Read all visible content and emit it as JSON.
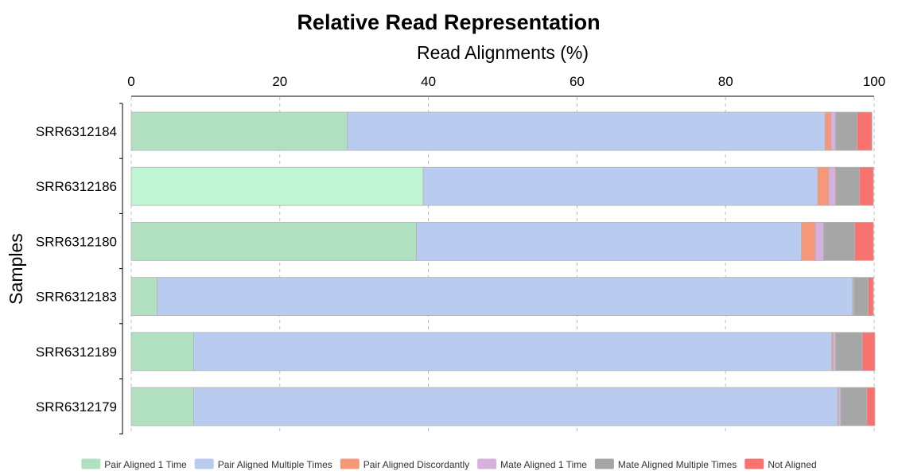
{
  "chart_data": {
    "type": "bar",
    "orientation": "horizontal",
    "stacked": true,
    "title": "Relative Read Representation",
    "xlabel": "Read Alignments (%)",
    "ylabel": "Samples",
    "xlim": [
      0,
      100
    ],
    "x_ticks": [
      "0",
      "20",
      "40",
      "60",
      "80",
      "100"
    ],
    "x_tick_values": [
      0,
      20,
      40,
      60,
      80,
      100
    ],
    "x_axis_position": "top",
    "grid": "vertical dashed",
    "legend_position": "bottom",
    "categories": [
      "SRR6312184",
      "SRR6312186",
      "SRR6312180",
      "SRR6312183",
      "SRR6312189",
      "SRR6312179"
    ],
    "series": [
      {
        "name": "Pair Aligned 1 Time",
        "color": "#b0e0c0",
        "values": [
          29.1,
          39.3,
          38.4,
          3.5,
          8.4,
          8.4
        ]
      },
      {
        "name": "Pair Aligned Multiple Times",
        "color": "#b9cbee",
        "values": [
          64.3,
          53.1,
          51.8,
          93.6,
          85.9,
          86.7
        ]
      },
      {
        "name": "Pair Aligned Discordantly",
        "color": "#f79779",
        "values": [
          0.8,
          1.5,
          1.9,
          0.1,
          0.2,
          0.1
        ]
      },
      {
        "name": "Mate Aligned 1 Time",
        "color": "#d6b1dd",
        "values": [
          0.6,
          0.9,
          1.1,
          0.1,
          0.3,
          0.3
        ]
      },
      {
        "name": "Mate Aligned Multiple Times",
        "color": "#a6a6a6",
        "values": [
          2.9,
          3.2,
          4.2,
          1.9,
          3.6,
          3.5
        ]
      },
      {
        "name": "Not Aligned",
        "color": "#f87370",
        "values": [
          2.0,
          1.9,
          2.5,
          0.7,
          1.7,
          1.1
        ]
      }
    ],
    "highlighted_color": "#c0f5d3"
  }
}
